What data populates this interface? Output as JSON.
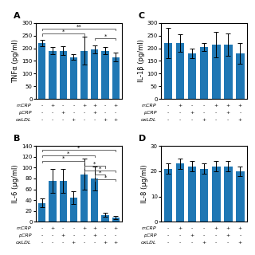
{
  "chart_data": [
    {
      "type": "bar",
      "title": "A",
      "ylabel": "TNFα (pg/ml)",
      "categories": [
        null,
        null,
        null,
        null,
        null,
        null,
        null,
        null
      ],
      "values": [
        220,
        190,
        190,
        165,
        190,
        195,
        190,
        165
      ],
      "errors": [
        12,
        15,
        18,
        12,
        55,
        15,
        15,
        18
      ],
      "ylim": [
        0,
        300
      ],
      "yticks": [
        0,
        50,
        100,
        150,
        200,
        250,
        300
      ],
      "tick_labels": "y",
      "significance": [
        {
          "from": 0,
          "to": 7,
          "y": 278,
          "label": "**"
        },
        {
          "from": 0,
          "to": 4,
          "y": 258,
          "label": "*"
        },
        {
          "from": 5,
          "to": 7,
          "y": 240,
          "label": "*"
        }
      ],
      "conditions": [
        {
          "name": "mCRP",
          "values": [
            "-",
            "+",
            "-",
            "-",
            "+",
            "+",
            "-",
            "+"
          ]
        },
        {
          "name": "pCRP",
          "values": [
            "-",
            "-",
            "+",
            "-",
            "-",
            "+",
            "-",
            "-"
          ]
        },
        {
          "name": "oxLDL",
          "values": [
            "-",
            "-",
            "-",
            "+",
            "-",
            "-",
            "+",
            "+"
          ]
        }
      ]
    },
    {
      "type": "bar",
      "title": "C",
      "ylabel": "IL-1β (pg/ml)",
      "categories": [
        null,
        null,
        null,
        null,
        null,
        null,
        null
      ],
      "values": [
        220,
        220,
        180,
        205,
        215,
        215,
        180
      ],
      "errors": [
        60,
        35,
        18,
        15,
        50,
        45,
        40
      ],
      "ylim": [
        0,
        300
      ],
      "yticks": [
        0,
        50,
        100,
        150,
        200,
        250,
        300
      ],
      "tick_labels": "y",
      "conditions": [
        {
          "name": "mCRP",
          "values": [
            "-",
            "+",
            "-",
            "-",
            "+",
            "+",
            "+"
          ]
        },
        {
          "name": "pCRP",
          "values": [
            "-",
            "-",
            "+",
            "-",
            "-",
            "+",
            "-"
          ]
        },
        {
          "name": "oxLDL",
          "values": [
            "-",
            "-",
            "-",
            "+",
            "-",
            "-",
            "+"
          ]
        }
      ]
    },
    {
      "type": "bar",
      "title": "B",
      "ylabel": "IL-6 (μg/ml)",
      "categories": [
        null,
        null,
        null,
        null,
        null,
        null,
        null,
        null
      ],
      "values": [
        35,
        75,
        75,
        45,
        88,
        80,
        13,
        8
      ],
      "errors": [
        8,
        22,
        22,
        12,
        28,
        22,
        4,
        3
      ],
      "ylim": [
        0,
        140
      ],
      "yticks": [
        0,
        20,
        40,
        60,
        80,
        100,
        120,
        140
      ],
      "tick_labels": "y",
      "significance": [
        {
          "from": 0,
          "to": 7,
          "y": 133,
          "label": "*"
        },
        {
          "from": 0,
          "to": 5,
          "y": 123,
          "label": "*"
        },
        {
          "from": 0,
          "to": 4,
          "y": 113,
          "label": "*"
        },
        {
          "from": 4,
          "to": 6,
          "y": 103,
          "label": "*"
        },
        {
          "from": 4,
          "to": 7,
          "y": 95,
          "label": "*"
        },
        {
          "from": 5,
          "to": 6,
          "y": 87,
          "label": "*"
        },
        {
          "from": 5,
          "to": 7,
          "y": 79,
          "label": "*"
        }
      ],
      "conditions": [
        {
          "name": "mCRP",
          "values": [
            "-",
            "+",
            "-",
            "-",
            "+",
            "+",
            "-",
            "+"
          ]
        },
        {
          "name": "pCRP",
          "values": [
            "-",
            "-",
            "+",
            "-",
            "-",
            "+",
            "-",
            "-"
          ]
        },
        {
          "name": "oxLDL",
          "values": [
            "-",
            "-",
            "-",
            "+",
            "-",
            "-",
            "+",
            "+"
          ]
        }
      ]
    },
    {
      "type": "bar",
      "title": "D",
      "ylabel": "IL-8 (μg/ml)",
      "categories": [
        null,
        null,
        null,
        null,
        null,
        null,
        null
      ],
      "values": [
        21,
        23,
        22,
        21,
        22,
        22,
        20
      ],
      "errors": [
        2,
        2,
        2,
        2,
        2,
        2,
        2
      ],
      "ylim": [
        0,
        30
      ],
      "yticks": [
        0,
        10,
        20,
        30
      ],
      "tick_labels": "y",
      "conditions": [
        {
          "name": "mCRP",
          "values": [
            "-",
            "+",
            "-",
            "-",
            "+",
            "+",
            "+"
          ]
        },
        {
          "name": "pCRP",
          "values": [
            "-",
            "-",
            "+",
            "-",
            "-",
            "+",
            "-"
          ]
        },
        {
          "name": "oxLDL",
          "values": [
            "-",
            "-",
            "-",
            "+",
            "-",
            "-",
            "+"
          ]
        }
      ]
    }
  ]
}
